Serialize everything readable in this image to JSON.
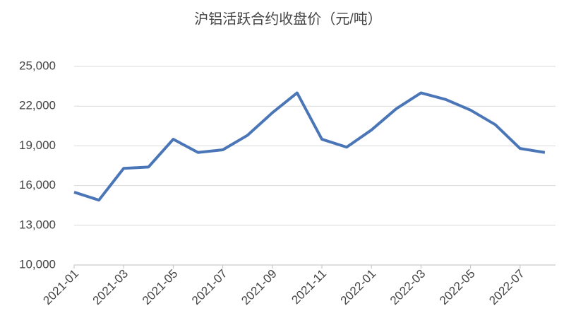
{
  "chart_data": {
    "type": "line",
    "title": "沪铝活跃合约收盘价（元/吨）",
    "x": [
      "2021-01",
      null,
      "2021-03",
      null,
      "2021-05",
      null,
      "2021-07",
      null,
      "2021-09",
      null,
      "2021-11",
      null,
      "2022-01",
      null,
      "2022-03",
      null,
      "2022-05",
      null,
      "2022-07",
      null
    ],
    "series": [
      {
        "name": "沪铝活跃合约收盘价",
        "color": "#4a76b8",
        "values": [
          15500,
          14900,
          17300,
          17400,
          19500,
          18500,
          18700,
          19800,
          21500,
          23000,
          19500,
          18900,
          20200,
          21800,
          23000,
          22500,
          21700,
          20600,
          18800,
          18500
        ]
      }
    ],
    "ylim": [
      10000,
      25000
    ],
    "yticks": [
      {
        "value": 10000,
        "label": "10,000"
      },
      {
        "value": 13000,
        "label": "13,000"
      },
      {
        "value": 16000,
        "label": "16,000"
      },
      {
        "value": 19000,
        "label": "19,000"
      },
      {
        "value": 22000,
        "label": "22,000"
      },
      {
        "value": 25000,
        "label": "25,000"
      }
    ],
    "grid": true
  }
}
